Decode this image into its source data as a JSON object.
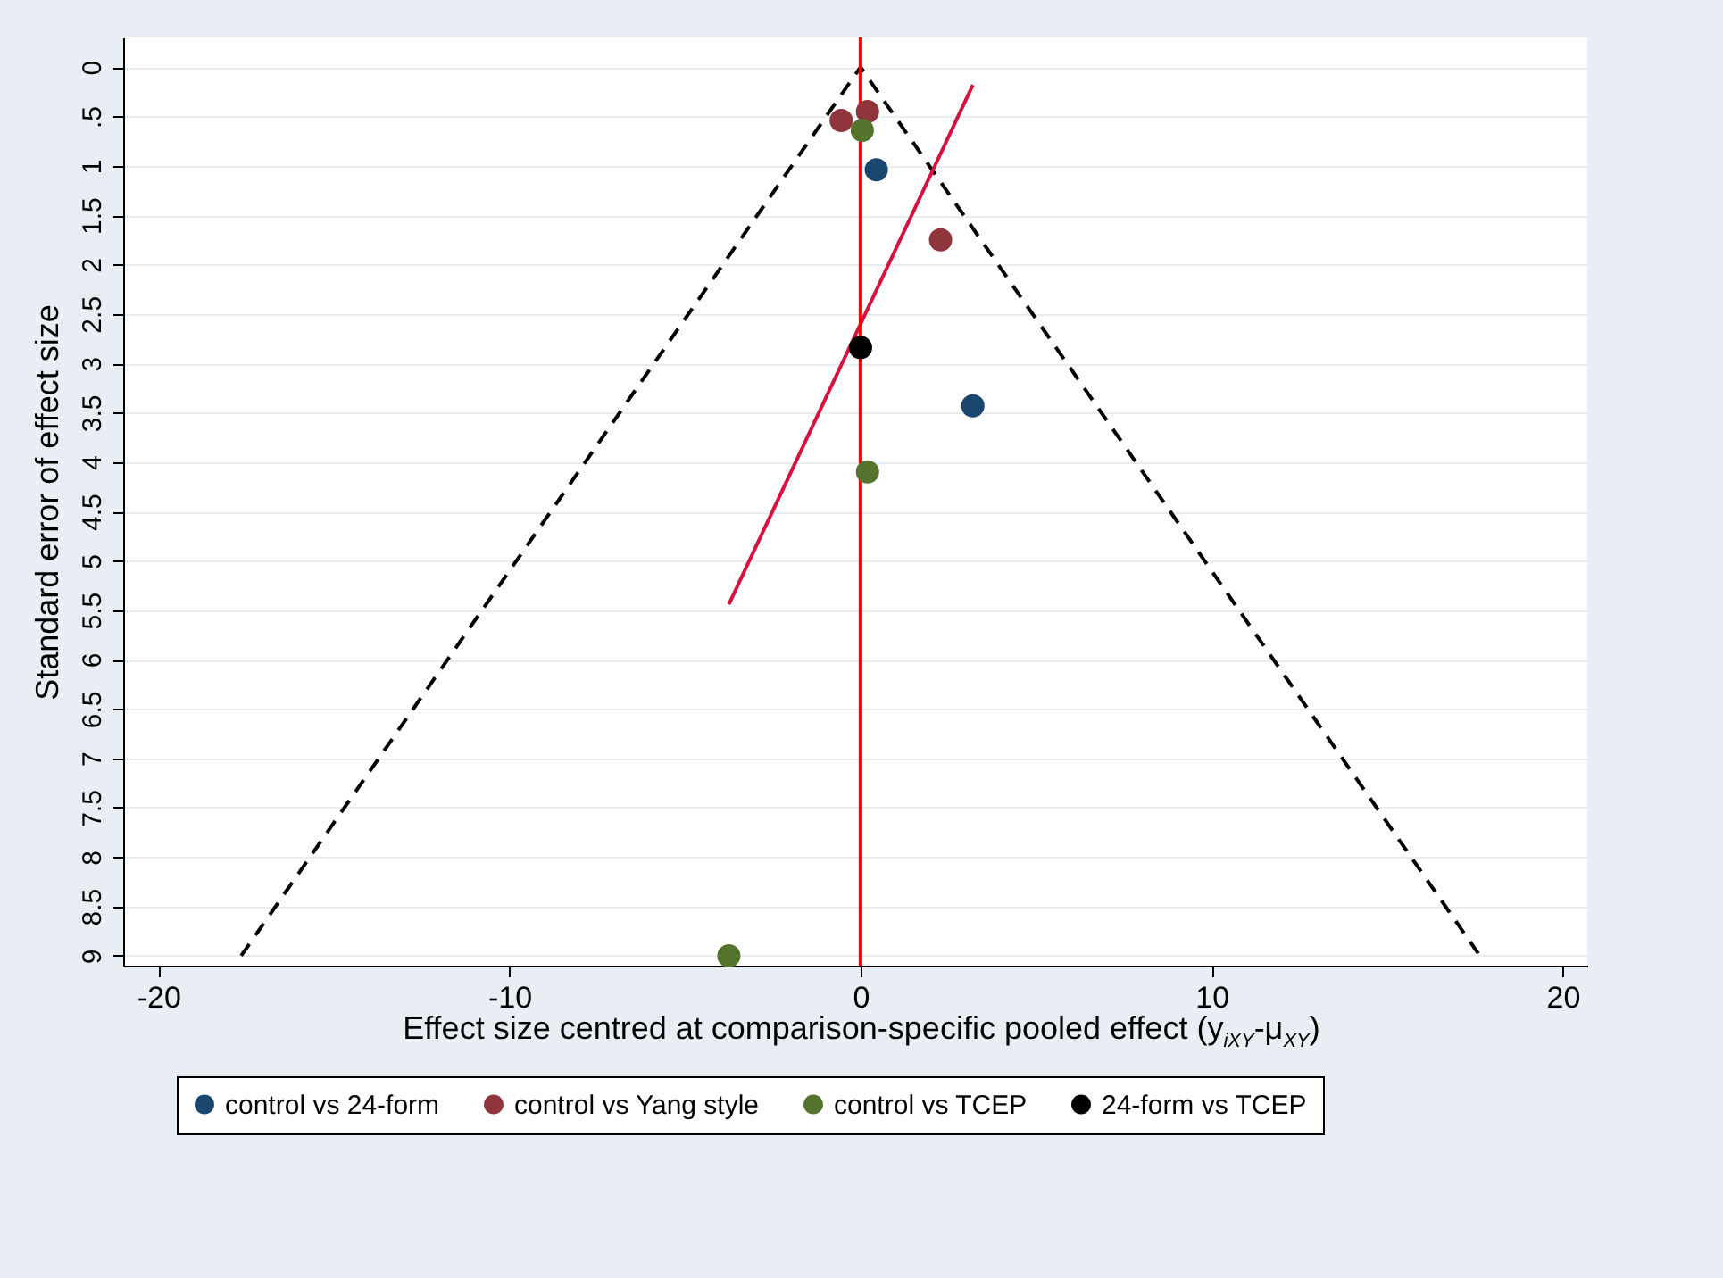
{
  "chart_data": {
    "type": "scatter",
    "xlabel": "Effect size centred at comparison-specific pooled effect (y$_{iXY}$-μ$_{XY}$)",
    "ylabel": "Standard error of effect size",
    "xlim": [
      -21,
      20.7
    ],
    "xticks": [
      -20,
      -10,
      0,
      10,
      20
    ],
    "ylim": [
      9.1,
      -0.3
    ],
    "yticks": [
      0,
      {
        "value": 0.5,
        "label": ".5"
      },
      1,
      1.5,
      2,
      2.5,
      3,
      3.5,
      4,
      4.5,
      5,
      5.5,
      6,
      6.5,
      7,
      7.5,
      8,
      8.5,
      9
    ],
    "grid": "y",
    "legend": "bottom",
    "marker": "circle",
    "series": [
      {
        "name": "control vs 24-form",
        "color": "#1a476f",
        "x": [
          0.45,
          3.2
        ],
        "values": [
          1.04,
          3.43
        ]
      },
      {
        "name": "control vs Yang style",
        "color": "#90353b",
        "x": [
          -0.55,
          0.2,
          2.28
        ],
        "values": [
          0.54,
          0.45,
          1.75
        ]
      },
      {
        "name": "control vs TCEP",
        "color": "#55752f",
        "x": [
          0.05,
          0.2,
          -3.75
        ],
        "values": [
          0.64,
          4.1,
          9.0
        ]
      },
      {
        "name": "24-form vs TCEP",
        "color": "#000000",
        "x": [
          0
        ],
        "values": [
          2.84
        ]
      },
      {
        "type": "line",
        "color": "#000000",
        "line_style": "dashed",
        "marker": "none",
        "x": [
          -17.64,
          0,
          17.64
        ],
        "values": [
          9,
          0,
          9
        ]
      },
      {
        "type": "line",
        "color": "#d6133c",
        "marker": "none",
        "x": [
          3.2,
          -3.75
        ],
        "values": [
          0.18,
          5.44
        ]
      }
    ],
    "ref_lines": [
      {
        "axis": "x",
        "value": 0,
        "color": "#ff0000"
      }
    ]
  }
}
